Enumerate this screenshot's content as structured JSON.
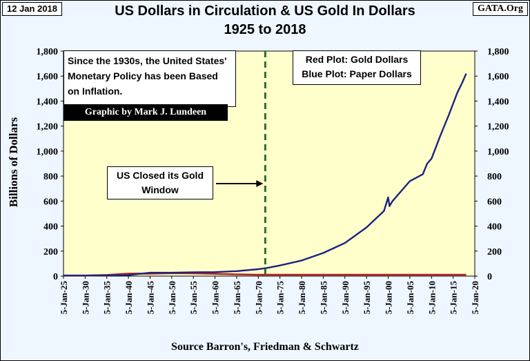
{
  "header": {
    "date": "12 Jan 2018",
    "site": "GATA.Org",
    "title_line1": "US Dollars in Circulation & US Gold In Dollars",
    "title_line2": "1925 to 2018"
  },
  "annotations": {
    "note": "Since the 1930s, the United States' Monetary Policy has been Based on Inflation.",
    "credit": "Graphic by Mark J. Lundeen",
    "legend_red": "Red Plot: Gold Dollars",
    "legend_blue": "Blue Plot: Paper Dollars",
    "gold_window": "US Closed its Gold Window",
    "source": "Source Barron's, Friedman & Schwartz"
  },
  "colors": {
    "plot_bg": "#ffffcc",
    "paper_dollars": "#1a237e",
    "gold_dollars": "#b22222",
    "event_line": "#2e6b2e"
  },
  "chart_data": {
    "type": "line",
    "title": "US Dollars in Circulation & US Gold In Dollars 1925 to 2018",
    "xlabel": "Source Barron's, Friedman & Schwartz",
    "ylabel": "Billions of Dollars",
    "xlim": [
      1925,
      2020
    ],
    "ylim": [
      0,
      1800
    ],
    "grid": false,
    "legend": "top-right",
    "y_ticks": [
      0,
      200,
      400,
      600,
      800,
      1000,
      1200,
      1400,
      1600,
      1800
    ],
    "y_tick_labels": [
      "0",
      "200",
      "400",
      "600",
      "800",
      "1,000",
      "1,200",
      "1,400",
      "1,600",
      "1,800"
    ],
    "x_ticks": [
      1925,
      1930,
      1935,
      1940,
      1945,
      1950,
      1955,
      1960,
      1965,
      1970,
      1975,
      1980,
      1985,
      1990,
      1995,
      2000,
      2005,
      2010,
      2015,
      2020
    ],
    "x_tick_labels": [
      "5-Jan-25",
      "5-Jan-30",
      "5-Jan-35",
      "5-Jan-40",
      "5-Jan-45",
      "5-Jan-50",
      "5-Jan-55",
      "5-Jan-60",
      "5-Jan-65",
      "5-Jan-70",
      "5-Jan-75",
      "5-Jan-80",
      "5-Jan-85",
      "5-Jan-90",
      "5-Jan-95",
      "5-Jan-00",
      "5-Jan-05",
      "5-Jan-10",
      "5-Jan-15",
      "5-Jan-20"
    ],
    "event_year": 1971.6,
    "series": [
      {
        "name": "Paper Dollars",
        "x": [
          1925,
          1930,
          1935,
          1940,
          1945,
          1950,
          1955,
          1960,
          1965,
          1970,
          1972,
          1975,
          1980,
          1985,
          1990,
          1995,
          1999,
          2000,
          2000.3,
          2001,
          2005,
          2008,
          2009,
          2010,
          2012,
          2014,
          2016,
          2017,
          2018
        ],
        "y": [
          5,
          5,
          6,
          8,
          27,
          27,
          31,
          32,
          40,
          55,
          65,
          85,
          125,
          185,
          265,
          390,
          520,
          630,
          560,
          600,
          760,
          815,
          900,
          940,
          1120,
          1290,
          1470,
          1540,
          1620
        ]
      },
      {
        "name": "Gold Dollars",
        "x": [
          1925,
          1930,
          1934,
          1935,
          1940,
          1945,
          1950,
          1955,
          1960,
          1965,
          1970,
          1975,
          1980,
          1985,
          1990,
          1995,
          2000,
          2005,
          2010,
          2015,
          2018
        ],
        "y": [
          4,
          4,
          8,
          9,
          20,
          20,
          23,
          22,
          18,
          14,
          11,
          11,
          11,
          11,
          11,
          11,
          11,
          11,
          11,
          11,
          11
        ]
      }
    ]
  }
}
